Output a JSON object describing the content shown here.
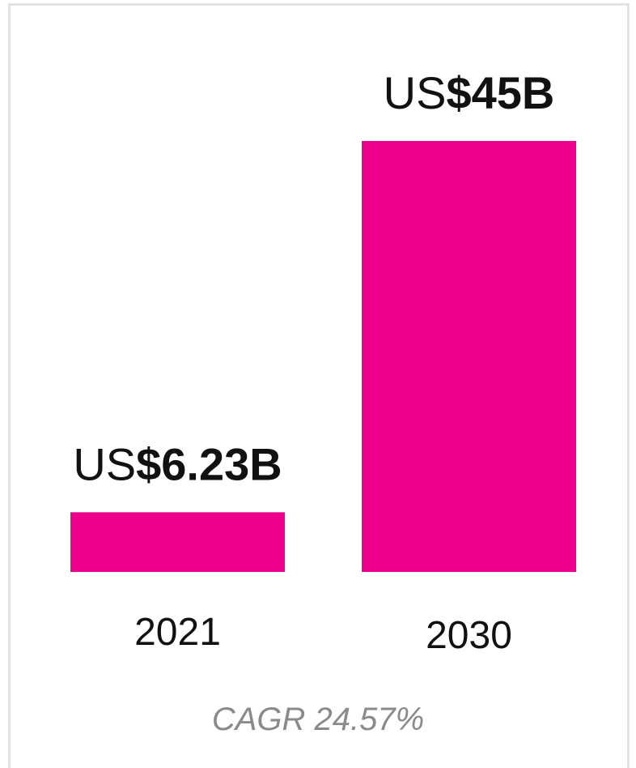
{
  "chart_data": {
    "type": "bar",
    "categories": [
      "2021",
      "2030"
    ],
    "values": [
      6.23,
      45
    ],
    "value_labels": [
      {
        "prefix": "US",
        "amount": "$6.23B"
      },
      {
        "prefix": "US",
        "amount": "$45B"
      }
    ],
    "footnote": "CAGR 24.57%",
    "bar_color": "#EC008C",
    "legend": "none",
    "grid": false,
    "axes_visible": false
  }
}
